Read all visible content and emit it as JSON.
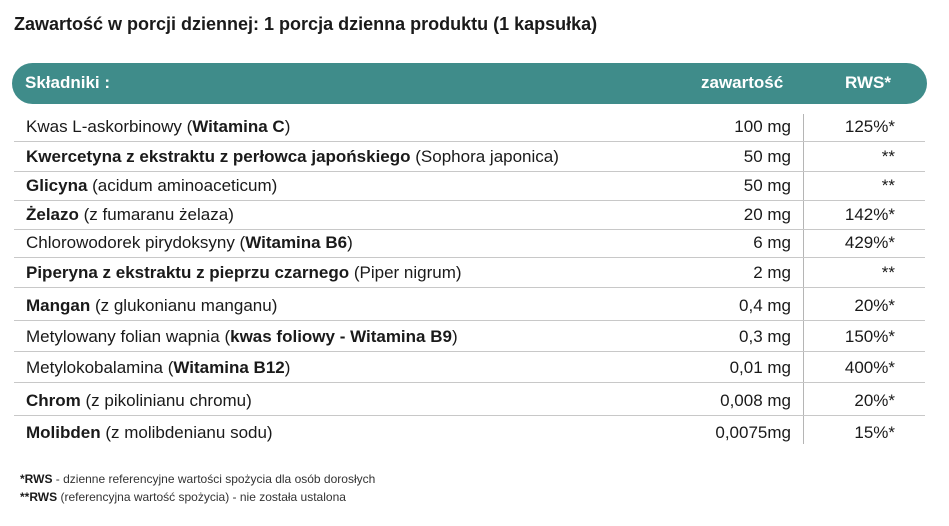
{
  "title": "Zawartość w porcji dziennej: 1 porcja dzienna produktu (1 kapsułka)",
  "header": {
    "name": "Składniki :",
    "amount": "zawartość",
    "rws": "RWS*"
  },
  "rows": [
    {
      "pre": "Kwas L-askorbinowy (",
      "bold": "Witamina C",
      "post": ")",
      "amount": "100 mg",
      "rws": "125%*"
    },
    {
      "pre": "",
      "bold": "Kwercetyna z ekstraktu z perłowca japońskiego",
      "post": " (Sophora japonica)",
      "amount": "50 mg",
      "rws": "**"
    },
    {
      "pre": "",
      "bold": "Glicyna",
      "post": " (acidum aminoaceticum)",
      "amount": "50 mg",
      "rws": "**"
    },
    {
      "pre": "",
      "bold": "Żelazo",
      "post": " (z fumaranu żelaza)",
      "amount": "20 mg",
      "rws": "142%*"
    },
    {
      "pre": "Chlorowodorek pirydoksyny (",
      "bold": "Witamina B6",
      "post": ")",
      "amount": "6 mg",
      "rws": "429%*"
    },
    {
      "pre": "",
      "bold": "Piperyna z ekstraktu z pieprzu czarnego",
      "post": " (Piper nigrum)",
      "amount": "2 mg",
      "rws": "**"
    },
    {
      "pre": "",
      "bold": "Mangan",
      "post": " (z glukonianu manganu)",
      "amount": "0,4 mg",
      "rws": "20%*"
    },
    {
      "pre": "Metylowany folian wapnia (",
      "bold": "kwas foliowy - Witamina B9",
      "post": ")",
      "amount": "0,3 mg",
      "rws": "150%*"
    },
    {
      "pre": "Metylokobalamina (",
      "bold": "Witamina B12",
      "post": ")",
      "amount": "0,01 mg",
      "rws": "400%*"
    },
    {
      "pre": "",
      "bold": "Chrom",
      "post": " (z pikolinianu chromu)",
      "amount": "0,008 mg",
      "rws": "20%*"
    },
    {
      "pre": "",
      "bold": "Molibden",
      "post": " (z molibdenianu sodu)",
      "amount": "0,0075mg",
      "rws": "15%*"
    }
  ],
  "footnotes": [
    {
      "mark": "*RWS",
      "text": " - dzienne referencyjne wartości spożycia dla osób dorosłych"
    },
    {
      "mark": "**RWS",
      "text": " (referencyjna wartość spożycia) - nie została ustalona"
    }
  ]
}
